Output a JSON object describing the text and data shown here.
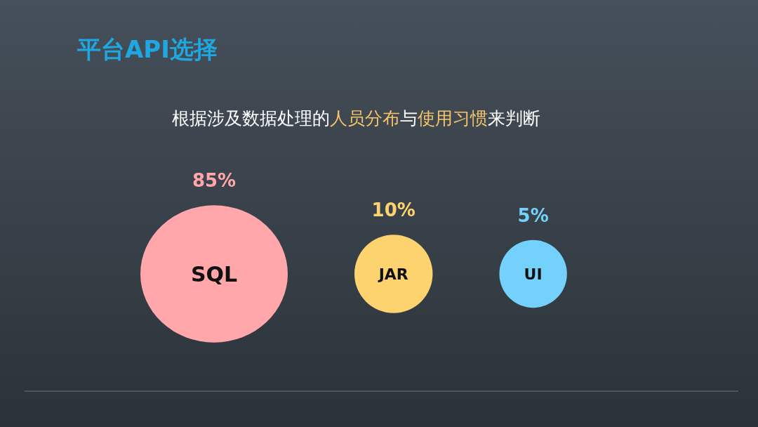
{
  "chart_data": {
    "type": "other",
    "title": "平台API选择",
    "subtitle": "根据涉及数据处理的**人员分布**与**使用习惯**来判断",
    "categories": [
      "SQL",
      "JAR",
      "UI"
    ],
    "values": [
      85,
      10,
      5
    ],
    "value_labels": [
      "85%",
      "10%",
      "5%"
    ],
    "colors": [
      "#ffa7ab",
      "#fdd36f",
      "#74d1fb"
    ]
  }
}
